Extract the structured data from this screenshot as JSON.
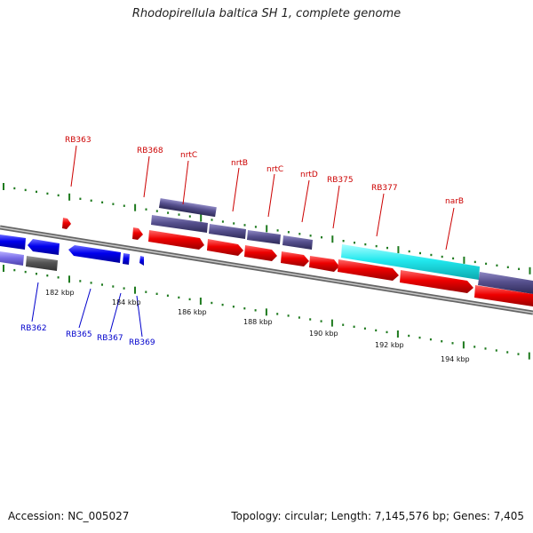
{
  "title": "Rhodopirellula baltica SH 1, complete genome",
  "footer": {
    "accession": "Accession: NC_005027",
    "topology": "Topology: circular; Length: 7,145,576 bp; Genes: 7,405"
  },
  "ticks": [
    "182 kbp",
    "184 kbp",
    "186 kbp",
    "188 kbp",
    "190 kbp",
    "192 kbp",
    "194 kbp"
  ],
  "labels_forward": [
    "RB363",
    "RB368",
    "nrtC",
    "nrtB",
    "nrtC",
    "nrtD",
    "RB375",
    "RB377",
    "narB"
  ],
  "labels_reverse": [
    "RB362",
    "RB365",
    "RB367",
    "RB369"
  ],
  "colors": {
    "forward_gene": "#ee0000",
    "reverse_gene": "#0000ee",
    "slate_gene": "#56508e",
    "highlight_gene": "#22e8ee",
    "gray_gene": "#555555",
    "light_blue_gene": "#7a6ee8",
    "label_forward": "#cc0000",
    "label_reverse": "#0000cc",
    "tick_marks": "#1e7a1e",
    "backbone": "#888888"
  }
}
